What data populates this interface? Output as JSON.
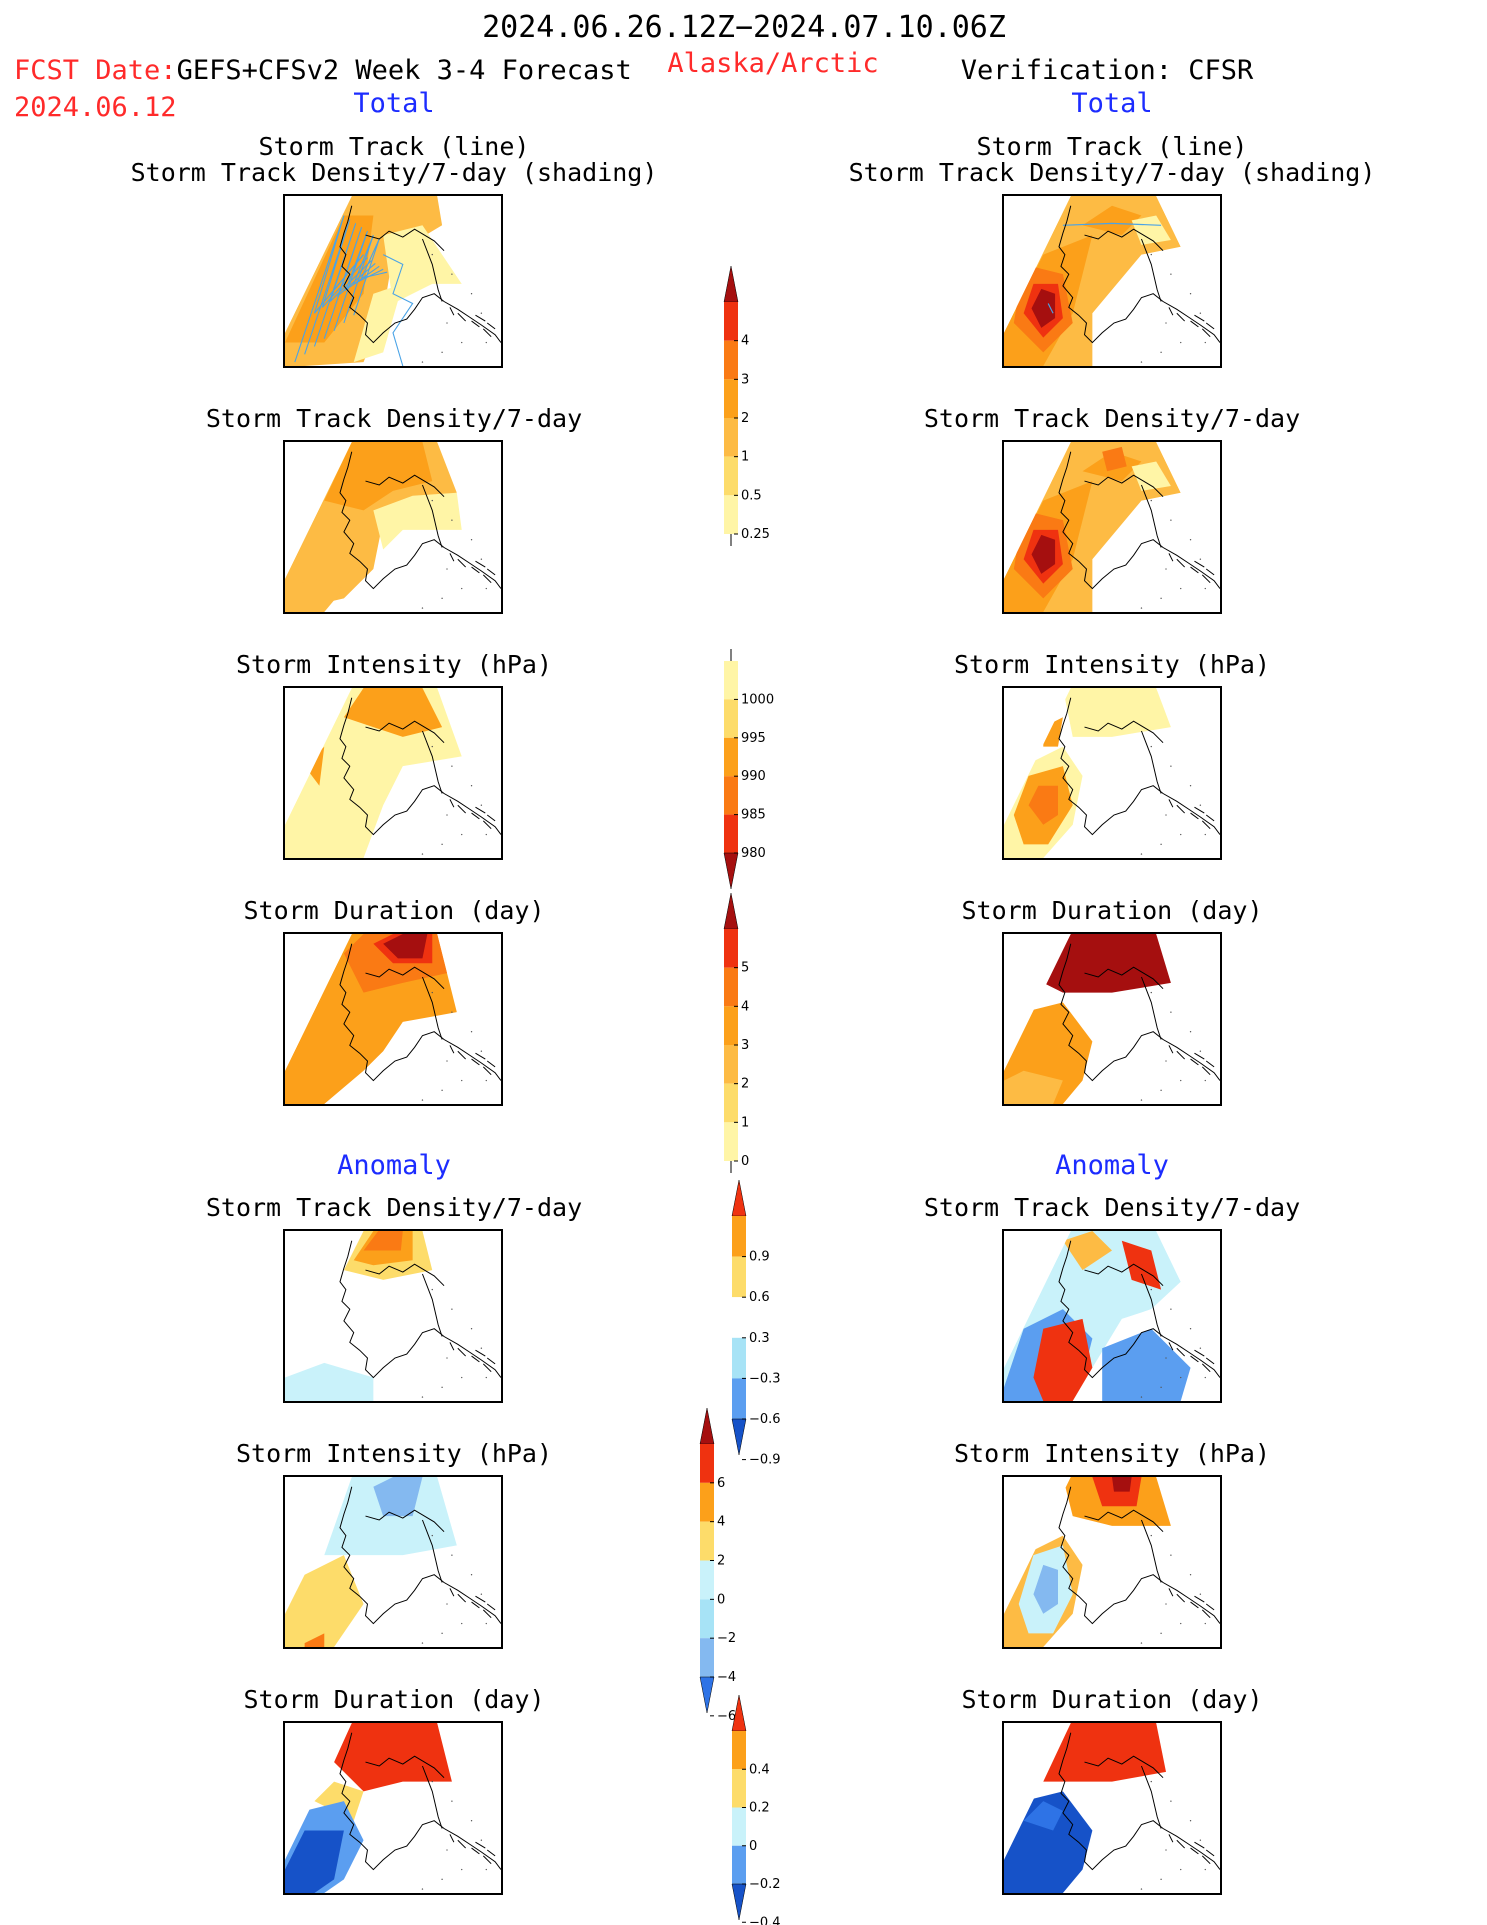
{
  "header": {
    "date_range": "2024.06.26.12Z−2024.07.10.06Z",
    "fcst_date_label": "FCST Date:",
    "model_label": "GEFS+CFSv2 Week 3-4 Forecast",
    "fcst_date": "2024.06.12",
    "region": "Alaska/Arctic",
    "verification": "Verification: CFSR"
  },
  "sections": {
    "total_left": "Total",
    "total_right": "Total",
    "anomaly_left": "Anomaly",
    "anomaly_right": "Anomaly"
  },
  "panel_titles": {
    "track_line": "Storm Track (line)",
    "track_shading": "Storm Track Density/7-day (shading)",
    "density": "Storm Track Density/7-day",
    "intensity": "Storm Intensity (hPa)",
    "duration": "Storm Duration (day)"
  },
  "colors": {
    "lightyellow": "#fff5a6",
    "yellow": "#fddc6a",
    "lightorange": "#fdbb44",
    "orange": "#fca01a",
    "darkorange": "#fa7a14",
    "red": "#ef3210",
    "darkred": "#a50f0f",
    "lightblue": "#c9f2fa",
    "blue1": "#a7e3f6",
    "blue2": "#84b9f0",
    "blue3": "#5b9ef0",
    "blue4": "#2e73e6",
    "darkblue": "#1652c8",
    "track_line": "#4aa3e6",
    "coast": "#000000"
  },
  "colorbars": {
    "density": {
      "ticks": [
        "0.25",
        "0.5",
        "1",
        "2",
        "3",
        "4"
      ],
      "colors": [
        "#fff5a6",
        "#fddc6a",
        "#fdbb44",
        "#fca01a",
        "#fa7a14",
        "#ef3210",
        "#a50f0f"
      ]
    },
    "intensity": {
      "ticks": [
        "1000",
        "995",
        "990",
        "985",
        "980"
      ],
      "colors": [
        "#fff5a6",
        "#fddc6a",
        "#fca01a",
        "#fa7a14",
        "#ef3210",
        "#a50f0f"
      ]
    },
    "duration": {
      "ticks": [
        "5",
        "4",
        "3",
        "2",
        "1",
        "0"
      ],
      "colors": [
        "#a50f0f",
        "#ef3210",
        "#fa7a14",
        "#fca01a",
        "#fdbb44",
        "#fddc6a",
        "#fff5a6"
      ]
    },
    "density_anom": {
      "ticks": [
        "0.9",
        "0.6",
        "0.3",
        "−0.3",
        "−0.6",
        "−0.9"
      ],
      "colors": [
        "#ef3210",
        "#fca01a",
        "#fddc6a",
        "#ffffff",
        "#a7e3f6",
        "#5b9ef0",
        "#1652c8"
      ]
    },
    "intensity_anom": {
      "ticks": [
        "6",
        "4",
        "2",
        "0",
        "−2",
        "−4",
        "−6"
      ],
      "colors": [
        "#a50f0f",
        "#ef3210",
        "#fca01a",
        "#fddc6a",
        "#c9f2fa",
        "#a7e3f6",
        "#84b9f0",
        "#2e73e6"
      ]
    },
    "duration_anom": {
      "ticks": [
        "0.4",
        "0.2",
        "0",
        "−0.2",
        "−0.4"
      ],
      "colors": [
        "#ef3210",
        "#fca01a",
        "#fddc6a",
        "#c9f2fa",
        "#5b9ef0",
        "#1652c8"
      ]
    }
  }
}
